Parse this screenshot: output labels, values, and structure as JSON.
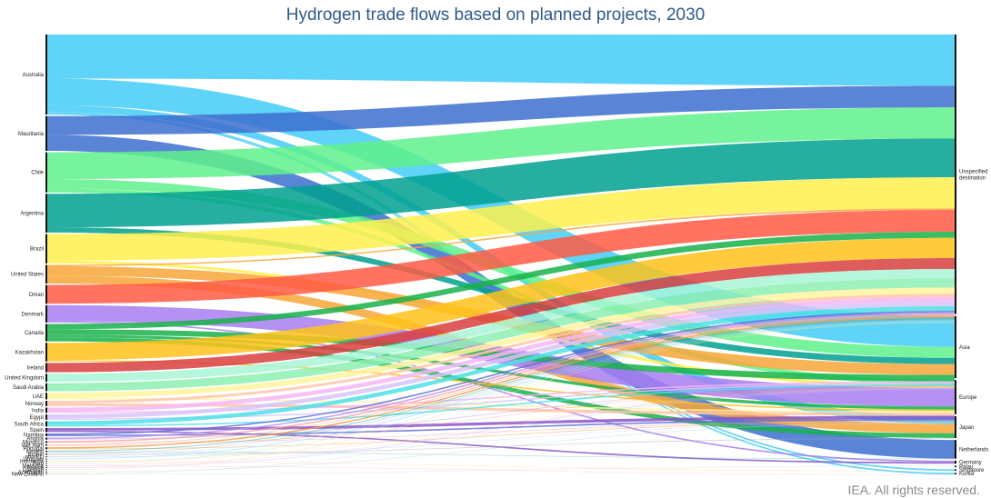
{
  "chart_data": {
    "type": "sankey",
    "title": "Hydrogen trade flows based on planned projects, 2030",
    "sources": [
      {
        "name": "Australia",
        "value": 60,
        "color": "#44ccf7"
      },
      {
        "name": "Mauritania",
        "value": 26,
        "color": "#3d6fcf"
      },
      {
        "name": "Chile",
        "value": 30,
        "color": "#5ff18c"
      },
      {
        "name": "Argentina",
        "value": 29,
        "color": "#00a08f"
      },
      {
        "name": "Brazil",
        "value": 22,
        "color": "#fff04d"
      },
      {
        "name": "United States",
        "value": 14,
        "color": "#f7a63a"
      },
      {
        "name": "Oman",
        "value": 14,
        "color": "#ff5a44"
      },
      {
        "name": "Denmark",
        "value": 13,
        "color": "#a77ef0"
      },
      {
        "name": "Canada",
        "value": 13,
        "color": "#17b14a"
      },
      {
        "name": "Kazakhstan",
        "value": 14,
        "color": "#ffc21a"
      },
      {
        "name": "Ireland",
        "value": 7,
        "color": "#d94040"
      },
      {
        "name": "United Kingdom",
        "value": 6,
        "color": "#a8f5d6"
      },
      {
        "name": "Saudi Arabia",
        "value": 6,
        "color": "#8eeeb1"
      },
      {
        "name": "UAE",
        "value": 5,
        "color": "#fff5a0"
      },
      {
        "name": "Norway",
        "value": 4,
        "color": "#ffc6a8"
      },
      {
        "name": "India",
        "value": 4,
        "color": "#f4b7f4"
      },
      {
        "name": "Egypt",
        "value": 4,
        "color": "#d7c4f7"
      },
      {
        "name": "South Africa",
        "value": 4,
        "color": "#4de0e6"
      },
      {
        "name": "Spain",
        "value": 3,
        "color": "#8a55c8"
      },
      {
        "name": "Namibia",
        "value": 2,
        "color": "#5d6fd8"
      },
      {
        "name": "Angola",
        "value": 1.5,
        "color": "#b890f0"
      },
      {
        "name": "Morocco",
        "value": 1.5,
        "color": "#f7a3a3"
      },
      {
        "name": "Viet Nam",
        "value": 1,
        "color": "#ff9a7a"
      },
      {
        "name": "Portugal",
        "value": 1.5,
        "color": "#f0a050"
      },
      {
        "name": "Iceland",
        "value": 1,
        "color": "#2bb0a0"
      },
      {
        "name": "Brunei",
        "value": 1,
        "color": "#aaaaaa"
      },
      {
        "name": "non-EU",
        "value": 0.6,
        "color": "#aac0ff"
      },
      {
        "name": "Uruguay",
        "value": 0.6,
        "color": "#7fd7ff"
      },
      {
        "name": "Indonesia",
        "value": 0.6,
        "color": "#ffd080"
      },
      {
        "name": "Peru",
        "value": 0.5,
        "color": "#b0f0b0"
      },
      {
        "name": "Malaysia",
        "value": 0.5,
        "color": "#ffb0d0"
      },
      {
        "name": "Russia",
        "value": 0.5,
        "color": "#c0c0ff"
      },
      {
        "name": "Pakistan",
        "value": 0.5,
        "color": "#ffe0a0"
      },
      {
        "name": "Azerbaijan",
        "value": 0.5,
        "color": "#b0e0e0"
      },
      {
        "name": "New Zealand",
        "value": 0.5,
        "color": "#d0d0d0"
      }
    ],
    "targets": [
      {
        "name": "Unspecified destination",
        "label_lines": [
          "Unspecified",
          "destination"
        ],
        "value": 180
      },
      {
        "name": "Asia",
        "value": 40
      },
      {
        "name": "Europe",
        "value": 22
      },
      {
        "name": "Japan",
        "value": 14
      },
      {
        "name": "Netherlands",
        "value": 12
      },
      {
        "name": "Germany",
        "value": 2
      },
      {
        "name": "Palau",
        "value": 1
      },
      {
        "name": "Singapore",
        "value": 1
      },
      {
        "name": "Korea",
        "value": 1
      }
    ],
    "flows": [
      {
        "from": "Australia",
        "to": "Unspecified destination",
        "value": 33
      },
      {
        "from": "Australia",
        "to": "Asia",
        "value": 20
      },
      {
        "from": "Australia",
        "to": "Japan",
        "value": 5
      },
      {
        "from": "Australia",
        "to": "Singapore",
        "value": 1
      },
      {
        "from": "Australia",
        "to": "Korea",
        "value": 1
      },
      {
        "from": "Mauritania",
        "to": "Unspecified destination",
        "value": 14
      },
      {
        "from": "Mauritania",
        "to": "Netherlands",
        "value": 12
      },
      {
        "from": "Chile",
        "to": "Unspecified destination",
        "value": 20
      },
      {
        "from": "Chile",
        "to": "Asia",
        "value": 7
      },
      {
        "from": "Chile",
        "to": "Europe",
        "value": 3
      },
      {
        "from": "Argentina",
        "to": "Unspecified destination",
        "value": 25
      },
      {
        "from": "Argentina",
        "to": "Asia",
        "value": 4
      },
      {
        "from": "Brazil",
        "to": "Unspecified destination",
        "value": 20
      },
      {
        "from": "Brazil",
        "to": "Europe",
        "value": 2
      },
      {
        "from": "United States",
        "to": "Asia",
        "value": 7
      },
      {
        "from": "United States",
        "to": "Japan",
        "value": 6
      },
      {
        "from": "United States",
        "to": "Unspecified destination",
        "value": 1
      },
      {
        "from": "Oman",
        "to": "Unspecified destination",
        "value": 14
      },
      {
        "from": "Denmark",
        "to": "Europe",
        "value": 12
      },
      {
        "from": "Denmark",
        "to": "Germany",
        "value": 1
      },
      {
        "from": "Canada",
        "to": "Unspecified destination",
        "value": 4
      },
      {
        "from": "Canada",
        "to": "Asia",
        "value": 4
      },
      {
        "from": "Canada",
        "to": "Japan",
        "value": 3
      },
      {
        "from": "Canada",
        "to": "Europe",
        "value": 2
      },
      {
        "from": "Kazakhstan",
        "to": "Unspecified destination",
        "value": 13
      },
      {
        "from": "Kazakhstan",
        "to": "Europe",
        "value": 1
      },
      {
        "from": "Ireland",
        "to": "Unspecified destination",
        "value": 7
      },
      {
        "from": "United Kingdom",
        "to": "Unspecified destination",
        "value": 6
      },
      {
        "from": "Saudi Arabia",
        "to": "Unspecified destination",
        "value": 6
      },
      {
        "from": "UAE",
        "to": "Unspecified destination",
        "value": 4
      },
      {
        "from": "UAE",
        "to": "Europe",
        "value": 1
      },
      {
        "from": "Norway",
        "to": "Unspecified destination",
        "value": 2
      },
      {
        "from": "Norway",
        "to": "Europe",
        "value": 2
      },
      {
        "from": "India",
        "to": "Unspecified destination",
        "value": 3
      },
      {
        "from": "India",
        "to": "Asia",
        "value": 1
      },
      {
        "from": "Egypt",
        "to": "Unspecified destination",
        "value": 3
      },
      {
        "from": "Egypt",
        "to": "Asia",
        "value": 1
      },
      {
        "from": "South Africa",
        "to": "Unspecified destination",
        "value": 3
      },
      {
        "from": "South Africa",
        "to": "Asia",
        "value": 1
      },
      {
        "from": "Spain",
        "to": "Europe",
        "value": 2
      },
      {
        "from": "Spain",
        "to": "Germany",
        "value": 1
      },
      {
        "from": "Namibia",
        "to": "Unspecified destination",
        "value": 1
      },
      {
        "from": "Namibia",
        "to": "Europe",
        "value": 1
      },
      {
        "from": "Angola",
        "to": "Unspecified destination",
        "value": 1
      },
      {
        "from": "Angola",
        "to": "Asia",
        "value": 0.5
      },
      {
        "from": "Morocco",
        "to": "Unspecified destination",
        "value": 1
      },
      {
        "from": "Morocco",
        "to": "Europe",
        "value": 0.5
      },
      {
        "from": "Viet Nam",
        "to": "Unspecified destination",
        "value": 0.6
      },
      {
        "from": "Viet Nam",
        "to": "Asia",
        "value": 0.4
      },
      {
        "from": "Portugal",
        "to": "Unspecified destination",
        "value": 1
      },
      {
        "from": "Portugal",
        "to": "Europe",
        "value": 0.5
      },
      {
        "from": "Iceland",
        "to": "Netherlands",
        "value": 0.3
      },
      {
        "from": "Iceland",
        "to": "Unspecified destination",
        "value": 0.7
      },
      {
        "from": "Brunei",
        "to": "Japan",
        "value": 0.5
      },
      {
        "from": "Brunei",
        "to": "Unspecified destination",
        "value": 0.5
      },
      {
        "from": "non-EU",
        "to": "Europe",
        "value": 0.3
      },
      {
        "from": "non-EU",
        "to": "Unspecified destination",
        "value": 0.3
      },
      {
        "from": "Uruguay",
        "to": "Unspecified destination",
        "value": 0.6
      },
      {
        "from": "Indonesia",
        "to": "Singapore",
        "value": 0.3
      },
      {
        "from": "Indonesia",
        "to": "Asia",
        "value": 0.3
      },
      {
        "from": "Peru",
        "to": "Unspecified destination",
        "value": 0.5
      },
      {
        "from": "Malaysia",
        "to": "Korea",
        "value": 0.3
      },
      {
        "from": "Malaysia",
        "to": "Asia",
        "value": 0.2
      },
      {
        "from": "Russia",
        "to": "Asia",
        "value": 0.5
      },
      {
        "from": "Pakistan",
        "to": "Unspecified destination",
        "value": 0.5
      },
      {
        "from": "Azerbaijan",
        "to": "Europe",
        "value": 0.5
      },
      {
        "from": "New Zealand",
        "to": "Asia",
        "value": 0.3
      },
      {
        "from": "New Zealand",
        "to": "Palau",
        "value": 0.2
      }
    ]
  },
  "footer": "IEA. All rights reserved."
}
